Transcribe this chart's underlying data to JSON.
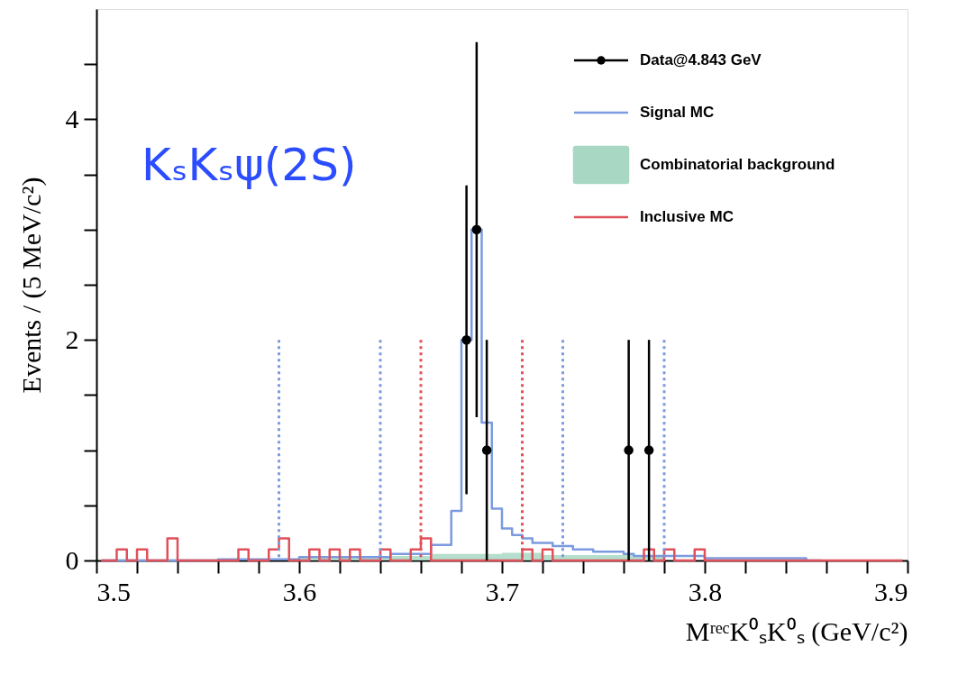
{
  "chart_data": {
    "type": "step",
    "xlabel": "MʳᵉᶜK⁰ₛK⁰ₛ (GeV/c²)",
    "ylabel": "Events / (5 MeV/c²)",
    "annotations": [
      "KₛKₛψ(2S)"
    ],
    "x": [
      3.5025,
      3.5075,
      3.5125,
      3.5175,
      3.5225,
      3.5275,
      3.5325,
      3.5375,
      3.5425,
      3.5475,
      3.5525,
      3.5575,
      3.5625,
      3.5675,
      3.5725,
      3.5775,
      3.5825,
      3.5875,
      3.5925,
      3.5975,
      3.6025,
      3.6075,
      3.6125,
      3.6175,
      3.6225,
      3.6275,
      3.6325,
      3.6375,
      3.6425,
      3.6475,
      3.6525,
      3.6575,
      3.6625,
      3.6675,
      3.6725,
      3.6775,
      3.6825,
      3.6875,
      3.6925,
      3.6975,
      3.7025,
      3.7075,
      3.7125,
      3.7175,
      3.7225,
      3.7275,
      3.7325,
      3.7375,
      3.7425,
      3.7475,
      3.7525,
      3.7575,
      3.7625,
      3.7675,
      3.7725,
      3.7775,
      3.7825,
      3.7875,
      3.7925,
      3.7975,
      3.8025,
      3.8075,
      3.8125,
      3.8175,
      3.8225,
      3.8275,
      3.8325,
      3.8375,
      3.8425,
      3.8475,
      3.8525,
      3.8575,
      3.8625,
      3.8675,
      3.8725,
      3.8775,
      3.8825,
      3.8875,
      3.8925,
      3.8975
    ],
    "series": [
      {
        "name": "Data@4.843 GeV",
        "type": "scatter",
        "color": "#000000",
        "marker": "circle",
        "x": [
          3.6825,
          3.6875,
          3.6925,
          3.7625,
          3.7725
        ],
        "values": [
          2,
          3,
          1,
          1,
          1
        ],
        "errors": [
          [
            0.6,
            3.4
          ],
          [
            1.3,
            4.7
          ],
          [
            0,
            2
          ],
          [
            0,
            2
          ],
          [
            0,
            2
          ]
        ]
      },
      {
        "name": "Signal MC",
        "color": "#7b9be0",
        "values": [
          0,
          0,
          0,
          0,
          0,
          0,
          0,
          0,
          0,
          0,
          0,
          0,
          0.01,
          0.01,
          0.01,
          0.01,
          0.01,
          0.01,
          0.01,
          0.01,
          0.03,
          0.03,
          0.03,
          0.03,
          0.03,
          0.03,
          0.03,
          0.03,
          0.03,
          0.06,
          0.06,
          0.06,
          0.06,
          0.14,
          0.14,
          0.45,
          2,
          3,
          1.25,
          0.47,
          0.29,
          0.23,
          0.2,
          0.16,
          0.16,
          0.13,
          0.13,
          0.1,
          0.1,
          0.08,
          0.08,
          0.08,
          0.06,
          0.04,
          0.04,
          0.04,
          0.04,
          0.04,
          0.04,
          0.04,
          0.02,
          0.02,
          0.02,
          0.02,
          0.02,
          0.02,
          0.02,
          0.02,
          0.02,
          0.02,
          0,
          0,
          null,
          null,
          null,
          null,
          null,
          null,
          null,
          null
        ]
      },
      {
        "name": "Combinatorial background",
        "type": "area",
        "color": "#a8d8c4",
        "values": [
          0.01,
          0.01,
          0.01,
          0.01,
          0.01,
          0.01,
          0.01,
          0.01,
          0.01,
          0.01,
          0.01,
          0.01,
          0.01,
          0.01,
          0.01,
          0.01,
          0.01,
          0.01,
          0.01,
          0.01,
          0.03,
          0.03,
          0.03,
          0.03,
          0.03,
          0.03,
          0.03,
          0.03,
          0.04,
          0.04,
          0.04,
          0.04,
          0.04,
          0.06,
          0.06,
          0.06,
          0.06,
          0.06,
          0.06,
          0.06,
          0.07,
          0.07,
          0.07,
          0.07,
          0.05,
          0.05,
          0.05,
          0.05,
          0.05,
          0.05,
          0.05,
          0.05,
          0.05,
          0.05,
          0.05,
          0.04,
          0,
          0,
          0,
          0,
          0,
          0,
          0,
          0,
          0,
          0,
          0,
          0,
          0,
          0,
          0,
          0,
          0,
          0,
          0,
          0,
          0,
          0,
          0,
          0
        ]
      },
      {
        "name": "Inclusive MC",
        "color": "#e0505a",
        "values": [
          0,
          0,
          0.1,
          0,
          0.1,
          0,
          0,
          0.2,
          0,
          0,
          0,
          0,
          0,
          0,
          0.1,
          0,
          0,
          0.1,
          0.2,
          0,
          0,
          0.1,
          0,
          0.1,
          0,
          0.1,
          0,
          0,
          0.1,
          0,
          0,
          0.1,
          0.2,
          0,
          0,
          0,
          0,
          0,
          0,
          0,
          0,
          0,
          0.1,
          0,
          0.1,
          0,
          0,
          0,
          0,
          0,
          0,
          0,
          0,
          0,
          0.1,
          0,
          0.1,
          0,
          0,
          0.1,
          0,
          0,
          0,
          0,
          0,
          0,
          0,
          0,
          0,
          0,
          0,
          0,
          0,
          0,
          0,
          0,
          0,
          0,
          0,
          0
        ]
      }
    ],
    "ref_lines": [
      {
        "axis": "x",
        "value": 3.59,
        "color": "#7b9be0",
        "line_style": "dotted"
      },
      {
        "axis": "x",
        "value": 3.64,
        "color": "#7b9be0",
        "line_style": "dotted"
      },
      {
        "axis": "x",
        "value": 3.66,
        "color": "#e0505a",
        "line_style": "dotted"
      },
      {
        "axis": "x",
        "value": 3.71,
        "color": "#e0505a",
        "line_style": "dotted"
      },
      {
        "axis": "x",
        "value": 3.73,
        "color": "#7b9be0",
        "line_style": "dotted"
      },
      {
        "axis": "x",
        "value": 3.78,
        "color": "#7b9be0",
        "line_style": "dotted"
      }
    ],
    "xlim": [
      3.5,
      3.9
    ],
    "xticks": [
      3.5,
      {
        "value": 3.52,
        "label": null
      },
      {
        "value": 3.54,
        "label": null
      },
      {
        "value": 3.56,
        "label": null
      },
      {
        "value": 3.58,
        "label": null
      },
      3.6,
      {
        "value": 3.62,
        "label": null
      },
      {
        "value": 3.64,
        "label": null
      },
      {
        "value": 3.66,
        "label": null
      },
      {
        "value": 3.68,
        "label": null
      },
      3.7,
      {
        "value": 3.72,
        "label": null
      },
      {
        "value": 3.74,
        "label": null
      },
      {
        "value": 3.76,
        "label": null
      },
      {
        "value": 3.78,
        "label": null
      },
      3.8,
      {
        "value": 3.82,
        "label": null
      },
      {
        "value": 3.84,
        "label": null
      },
      {
        "value": 3.86,
        "label": null
      },
      {
        "value": 3.88,
        "label": null
      },
      3.9
    ],
    "ylim": [
      0,
      5
    ],
    "yticks": [
      0,
      {
        "value": 0.5,
        "label": null
      },
      {
        "value": 1,
        "label": null
      },
      {
        "value": 1.5,
        "label": null
      },
      2,
      {
        "value": 2.5,
        "label": null
      },
      {
        "value": 3,
        "label": null
      },
      {
        "value": 3.5,
        "label": null
      },
      4,
      {
        "value": 4.5,
        "label": null
      }
    ],
    "grid": false,
    "legend": "top right"
  }
}
